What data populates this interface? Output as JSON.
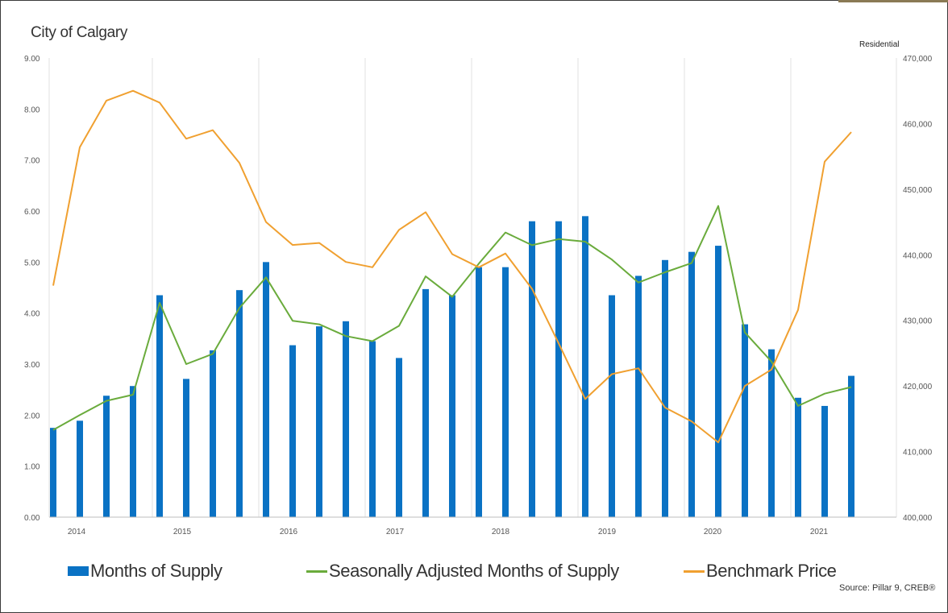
{
  "title": "City of Calgary",
  "right_axis_label": "Residential",
  "source": "Source: Pillar 9, CREB®",
  "legend": [
    {
      "label": "Months of Supply",
      "color": "#0a72c4",
      "kind": "bar"
    },
    {
      "label": "Seasonally Adjusted Months of Supply",
      "color": "#6aab3c",
      "kind": "line"
    },
    {
      "label": "Benchmark Price",
      "color": "#f0a030",
      "kind": "line"
    }
  ],
  "chart_data": {
    "type": "bar",
    "title": "City of Calgary",
    "x_tick_labels": [
      "2014",
      "2015",
      "2016",
      "2017",
      "2018",
      "2019",
      "2020",
      "2021"
    ],
    "y_left": {
      "range": [
        0,
        9
      ],
      "ticks": [
        "0.00",
        "1.00",
        "2.00",
        "3.00",
        "4.00",
        "5.00",
        "6.00",
        "7.00",
        "8.00",
        "9.00"
      ]
    },
    "y_right": {
      "label": "Residential",
      "range": [
        400000,
        470000
      ],
      "ticks": [
        "400,000",
        "410,000",
        "420,000",
        "430,000",
        "440,000",
        "450,000",
        "460,000",
        "470,000"
      ]
    },
    "grid": "vertical",
    "legend_position": "bottom",
    "series": [
      {
        "name": "Months of Supply",
        "type": "bar",
        "axis": "left",
        "color": "#0a72c4",
        "values": [
          1.75,
          1.89,
          2.38,
          2.57,
          4.35,
          2.71,
          3.27,
          4.45,
          5.0,
          3.37,
          3.74,
          3.84,
          3.45,
          3.12,
          4.47,
          4.35,
          4.9,
          4.9,
          5.8,
          5.8,
          5.9,
          4.35,
          4.73,
          5.04,
          5.2,
          5.32,
          3.78,
          3.29,
          2.34,
          2.18,
          2.77
        ]
      },
      {
        "name": "Seasonally Adjusted Months of Supply",
        "type": "line",
        "axis": "left",
        "color": "#6aab3c",
        "values": [
          1.71,
          2.0,
          2.28,
          2.4,
          4.2,
          3.0,
          3.2,
          4.1,
          4.7,
          3.85,
          3.78,
          3.55,
          3.45,
          3.75,
          4.72,
          4.32,
          4.97,
          5.58,
          5.33,
          5.45,
          5.4,
          5.05,
          4.6,
          4.8,
          4.98,
          6.1,
          3.62,
          3.05,
          2.18,
          2.42,
          2.55
        ]
      },
      {
        "name": "Benchmark Price",
        "type": "line",
        "axis": "right",
        "color": "#f0a030",
        "values": [
          435300,
          456400,
          463500,
          465000,
          463200,
          457700,
          459000,
          454000,
          445000,
          441500,
          441800,
          438900,
          438100,
          443800,
          446500,
          440100,
          438100,
          440200,
          434800,
          426500,
          418000,
          421800,
          422700,
          416700,
          414600,
          411400,
          420000,
          422500,
          431600,
          454200,
          458700
        ]
      }
    ]
  }
}
